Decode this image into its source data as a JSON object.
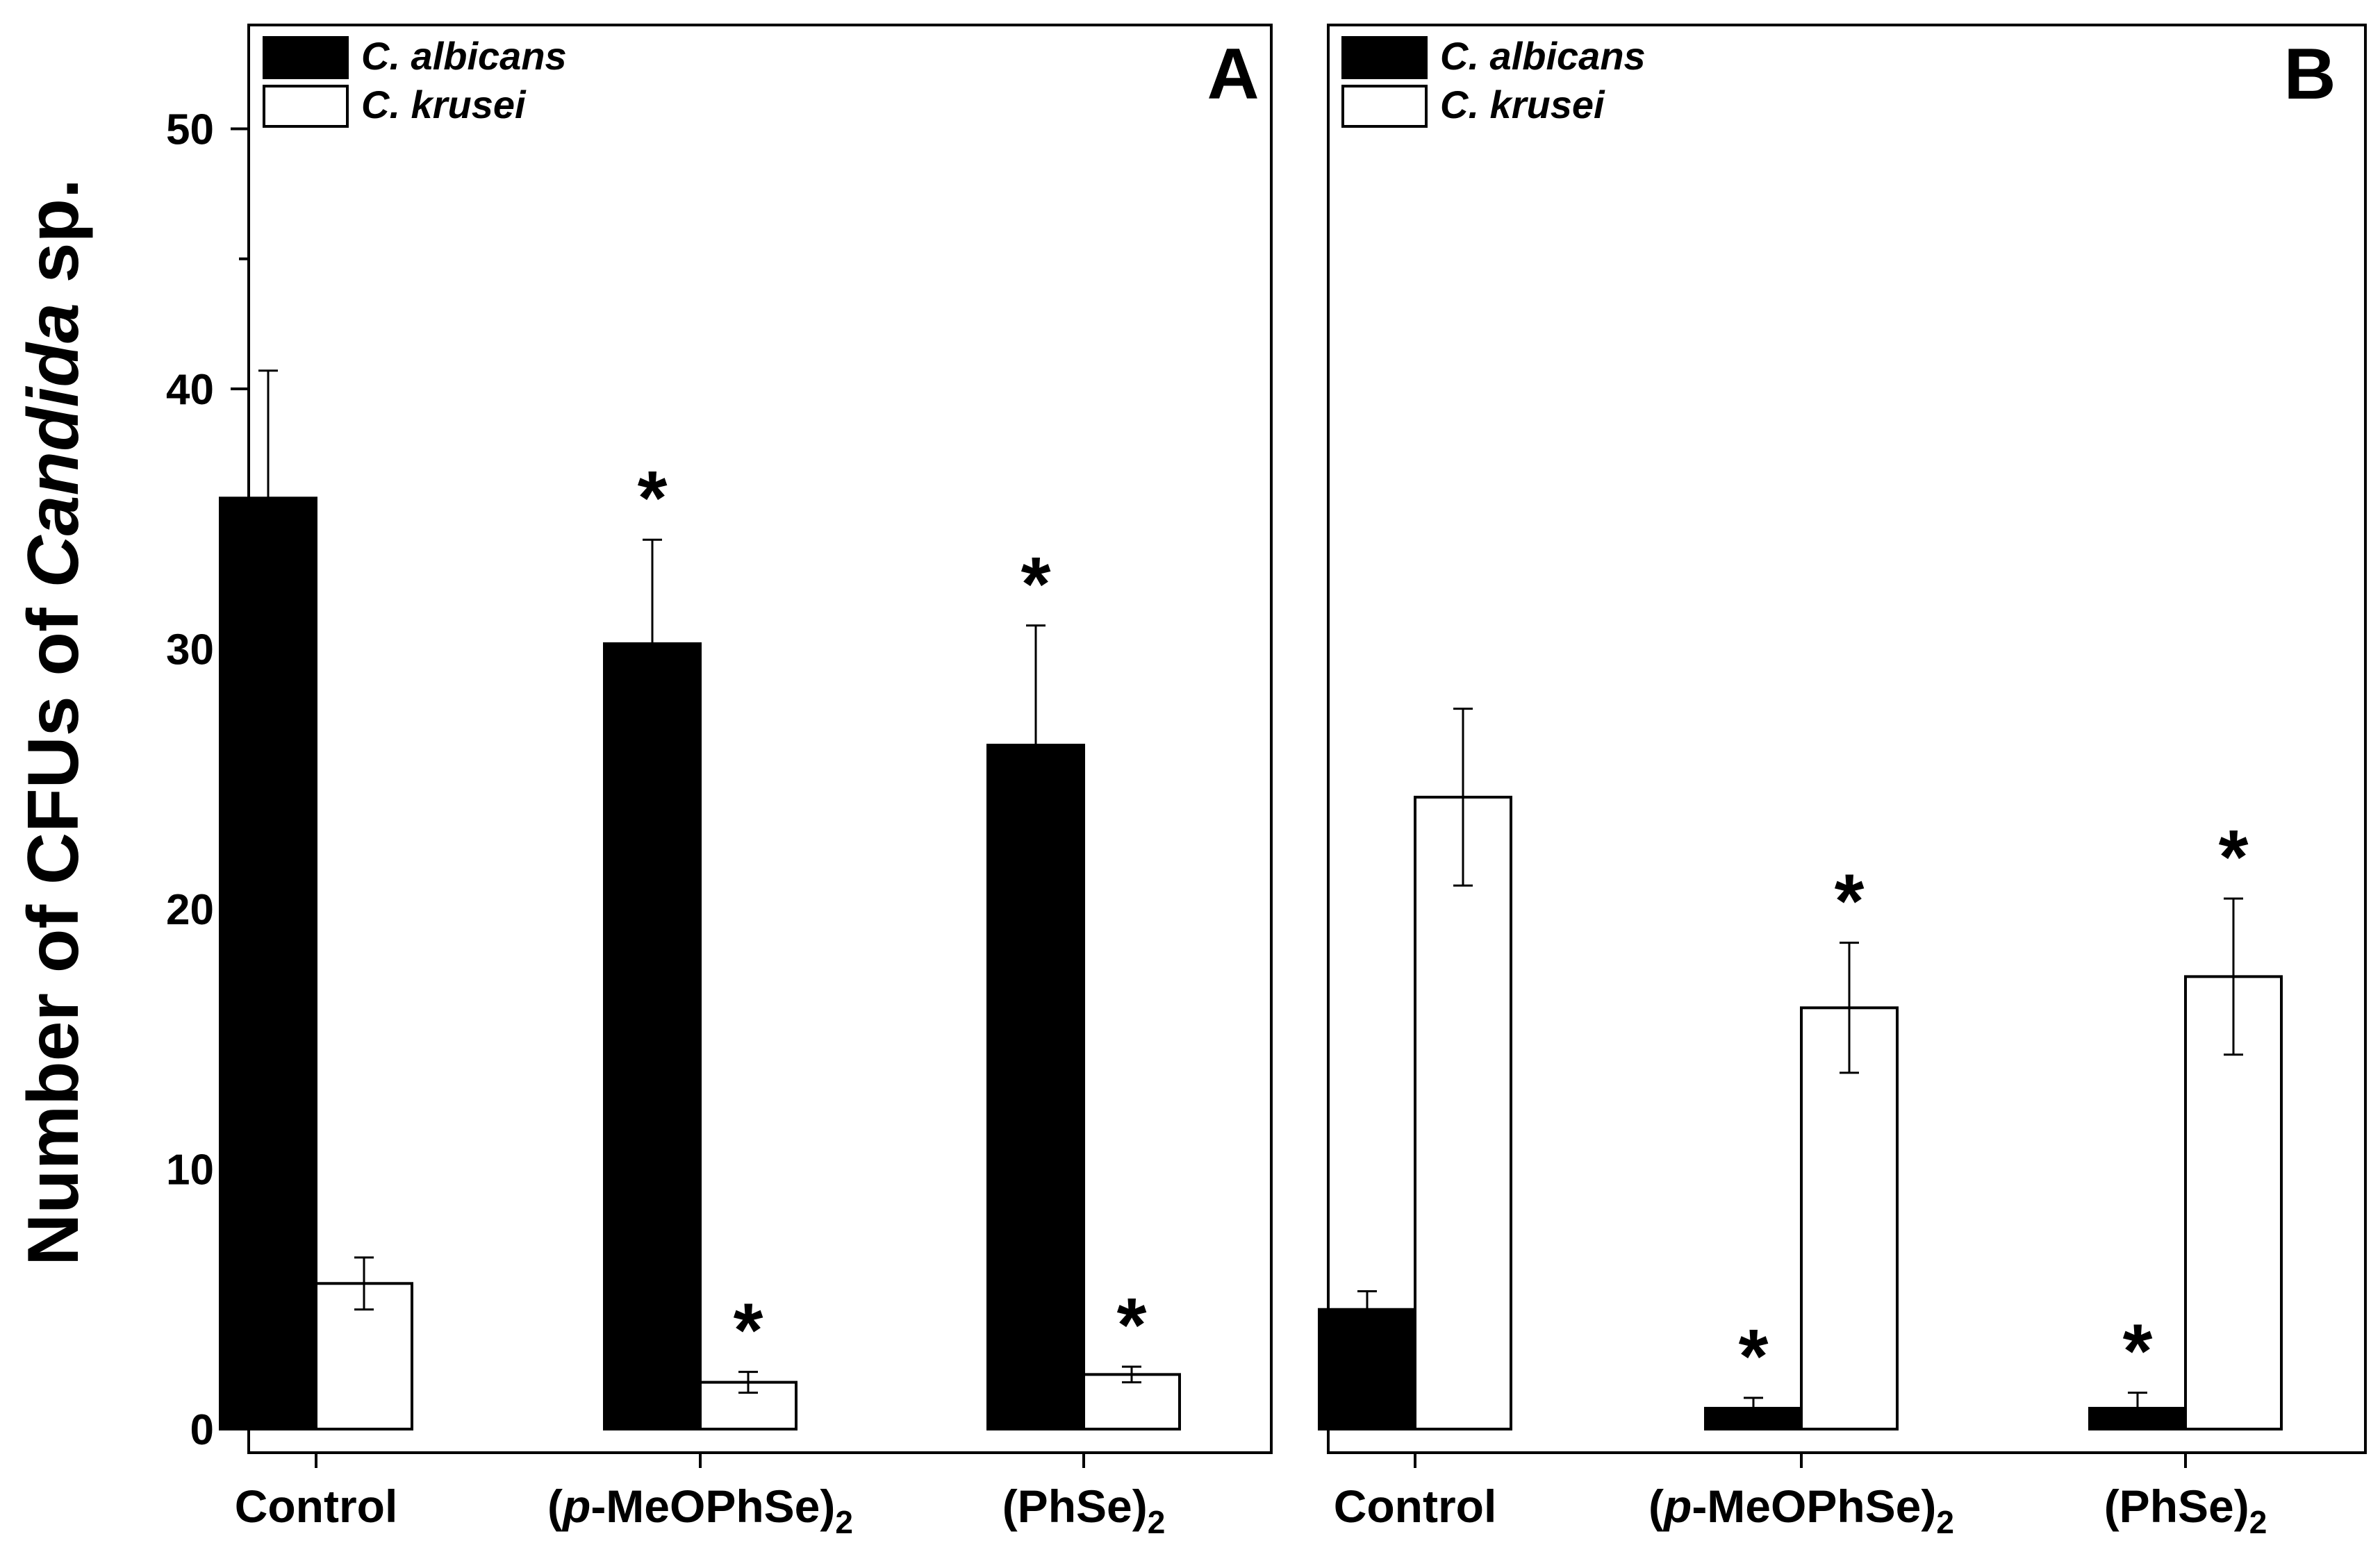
{
  "chart_data": [
    {
      "type": "bar",
      "panel_label": "A",
      "categories": [
        "Control",
        "(p-MeOPhSe)2",
        "(PhSe)2"
      ],
      "category_labels": [
        {
          "prefix": "Control",
          "italic": "",
          "rest": "",
          "sub": ""
        },
        {
          "prefix": "(",
          "italic": "p",
          "rest": "-MeOPhSe)",
          "sub": "2"
        },
        {
          "prefix": "(PhSe)",
          "italic": "",
          "rest": "",
          "sub": "2"
        }
      ],
      "ylabel_parts": [
        "Number of CFUs of ",
        "Candida",
        " sp."
      ],
      "ylim": [
        0,
        53
      ],
      "yticks": [
        0,
        10,
        20,
        30,
        40,
        50
      ],
      "ytick_labels": [
        "0",
        "10",
        "20",
        "30",
        "40",
        "50"
      ],
      "series": [
        {
          "name": "C. albicans",
          "fill": "#000000",
          "values": [
            35.8,
            30.2,
            26.3
          ],
          "errors": [
            4.9,
            4.0,
            4.6
          ],
          "significant": [
            false,
            true,
            true
          ]
        },
        {
          "name": "C. krusei",
          "fill": "#ffffff",
          "values": [
            5.6,
            1.8,
            2.1
          ],
          "errors": [
            1.0,
            0.4,
            0.3
          ],
          "significant": [
            false,
            true,
            true
          ]
        }
      ],
      "significance_marker": "*",
      "legend": {
        "placement": "top-left",
        "entries": [
          "C. albicans",
          "C. krusei"
        ]
      }
    },
    {
      "type": "bar",
      "panel_label": "B",
      "categories": [
        "Control",
        "(p-MeOPhSe)2",
        "(PhSe)2"
      ],
      "category_labels": [
        {
          "prefix": "Control",
          "italic": "",
          "rest": "",
          "sub": ""
        },
        {
          "prefix": "(",
          "italic": "p",
          "rest": "-MeOPhSe)",
          "sub": "2"
        },
        {
          "prefix": "(PhSe)",
          "italic": "",
          "rest": "",
          "sub": "2"
        }
      ],
      "ylim": [
        0,
        53
      ],
      "series": [
        {
          "name": "C. albicans",
          "fill": "#000000",
          "values": [
            4.6,
            0.8,
            0.8
          ],
          "errors": [
            0.7,
            0.4,
            0.6
          ],
          "significant": [
            false,
            true,
            true
          ]
        },
        {
          "name": "C. krusei",
          "fill": "#ffffff",
          "values": [
            24.3,
            16.2,
            17.4
          ],
          "errors": [
            3.4,
            2.5,
            3.0
          ],
          "significant": [
            false,
            true,
            true
          ]
        }
      ],
      "significance_marker": "*",
      "legend": {
        "placement": "top-left",
        "entries": [
          "C. albicans",
          "C. krusei"
        ]
      }
    }
  ]
}
